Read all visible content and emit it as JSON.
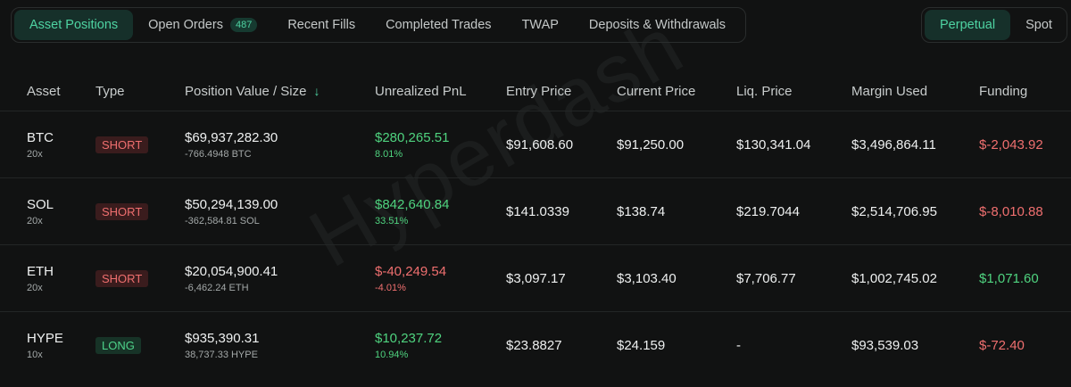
{
  "tabs": [
    {
      "label": "Asset Positions",
      "active": true
    },
    {
      "label": "Open Orders",
      "badge": "487",
      "active": false
    },
    {
      "label": "Recent Fills",
      "active": false
    },
    {
      "label": "Completed Trades",
      "active": false
    },
    {
      "label": "TWAP",
      "active": false
    },
    {
      "label": "Deposits & Withdrawals",
      "active": false
    }
  ],
  "market_toggle": {
    "perpetual": "Perpetual",
    "spot": "Spot",
    "selected": "Perpetual"
  },
  "watermark": "Hyperdash",
  "table": {
    "headers": {
      "asset": "Asset",
      "type": "Type",
      "position": "Position Value / Size",
      "pnl": "Unrealized PnL",
      "entry": "Entry Price",
      "current": "Current Price",
      "liq": "Liq. Price",
      "margin": "Margin Used",
      "funding": "Funding"
    },
    "sort_icon": "arrow-down-icon",
    "rows": [
      {
        "asset": "BTC",
        "leverage": "20x",
        "type": "SHORT",
        "value": "$69,937,282.30",
        "size": "-766.4948 BTC",
        "pnl": "$280,265.51",
        "pnl_pct": "8.01%",
        "entry": "$91,608.60",
        "current": "$91,250.00",
        "liq": "$130,341.04",
        "margin": "$3,496,864.11",
        "funding": "$-2,043.92"
      },
      {
        "asset": "SOL",
        "leverage": "20x",
        "type": "SHORT",
        "value": "$50,294,139.00",
        "size": "-362,584.81 SOL",
        "pnl": "$842,640.84",
        "pnl_pct": "33.51%",
        "entry": "$141.0339",
        "current": "$138.74",
        "liq": "$219.7044",
        "margin": "$2,514,706.95",
        "funding": "$-8,010.88"
      },
      {
        "asset": "ETH",
        "leverage": "20x",
        "type": "SHORT",
        "value": "$20,054,900.41",
        "size": "-6,462.24 ETH",
        "pnl": "$-40,249.54",
        "pnl_pct": "-4.01%",
        "entry": "$3,097.17",
        "current": "$3,103.40",
        "liq": "$7,706.77",
        "margin": "$1,002,745.02",
        "funding": "$1,071.60"
      },
      {
        "asset": "HYPE",
        "leverage": "10x",
        "type": "LONG",
        "value": "$935,390.31",
        "size": "38,737.33 HYPE",
        "pnl": "$10,237.72",
        "pnl_pct": "10.94%",
        "entry": "$23.8827",
        "current": "$24.159",
        "liq": "-",
        "margin": "$93,539.03",
        "funding": "$-72.40"
      }
    ]
  },
  "colors": {
    "accent": "#4ed3a2",
    "positive": "#4fd37f",
    "negative": "#ef6f6f",
    "background": "#111212"
  }
}
